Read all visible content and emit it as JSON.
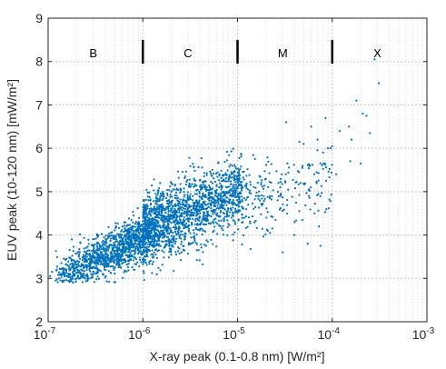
{
  "chart_data": {
    "type": "scatter",
    "title": "",
    "xlabel": "X-ray peak (0.1-0.8 nm) [W/m²]",
    "ylabel": "EUV peak (10-120 nm) [mW/m²]",
    "xscale": "log",
    "xlim": [
      1e-07,
      0.001
    ],
    "ylim": [
      2,
      9
    ],
    "grid": true,
    "grid_style": "dotted, x minor log grid",
    "point_color": "#0072bd",
    "x_ticks": [
      {
        "base": "10",
        "exp": "-7"
      },
      {
        "base": "10",
        "exp": "-6"
      },
      {
        "base": "10",
        "exp": "-5"
      },
      {
        "base": "10",
        "exp": "-4"
      },
      {
        "base": "10",
        "exp": "-3"
      }
    ],
    "y_ticks": [
      "2",
      "3",
      "4",
      "5",
      "6",
      "7",
      "8",
      "9"
    ],
    "flare_class_boundaries": [
      1e-06,
      1e-05,
      0.0001
    ],
    "flare_class_labels": [
      {
        "label": "B",
        "x": 3e-07
      },
      {
        "label": "C",
        "x": 3e-06
      },
      {
        "label": "M",
        "x": 3e-05
      },
      {
        "label": "X",
        "x": 0.0003
      }
    ],
    "clusters": [
      {
        "x_range": [
          1.2e-07,
          1e-06
        ],
        "y_mean": 3.45,
        "y_sd": 0.25,
        "slope": 1.1,
        "count": 1100
      },
      {
        "x_range": [
          1e-06,
          1.1e-05
        ],
        "y_mean": 4.55,
        "y_sd": 0.4,
        "slope": 0.9,
        "count": 1700
      },
      {
        "x_range": [
          1.1e-05,
          0.0001
        ],
        "y_mean": 5.0,
        "y_sd": 0.45,
        "slope": 0.5,
        "count": 220
      }
    ],
    "outliers": [
      {
        "x": 0.00028,
        "y": 8.05
      },
      {
        "x": 0.00031,
        "y": 7.5
      },
      {
        "x": 0.00018,
        "y": 7.1
      },
      {
        "x": 0.00021,
        "y": 6.8
      },
      {
        "x": 0.00023,
        "y": 6.75
      },
      {
        "x": 0.00025,
        "y": 6.35
      },
      {
        "x": 0.00015,
        "y": 6.5
      },
      {
        "x": 8.5e-05,
        "y": 6.7
      },
      {
        "x": 0.00012,
        "y": 6.4
      },
      {
        "x": 0.000155,
        "y": 5.7
      },
      {
        "x": 0.0002,
        "y": 5.65
      },
      {
        "x": 0.00011,
        "y": 5.4
      },
      {
        "x": 7e-05,
        "y": 6.2
      },
      {
        "x": 6e-05,
        "y": 6.5
      },
      {
        "x": 5e-05,
        "y": 6.1
      },
      {
        "x": 4.5e-05,
        "y": 6.15
      },
      {
        "x": 8e-05,
        "y": 5.9
      },
      {
        "x": 9e-05,
        "y": 6.0
      },
      {
        "x": 7.5e-05,
        "y": 3.75
      },
      {
        "x": 5.5e-05,
        "y": 3.8
      },
      {
        "x": 3e-05,
        "y": 3.6
      },
      {
        "x": 4e-05,
        "y": 4.3
      },
      {
        "x": 2.2e-05,
        "y": 4.05
      },
      {
        "x": 6.5e-05,
        "y": 4.5
      },
      {
        "x": 0.00016,
        "y": 6.2
      },
      {
        "x": 0.0001,
        "y": 6.05
      },
      {
        "x": 1.3e-07,
        "y": 3.0
      },
      {
        "x": 1.1e-07,
        "y": 3.15
      },
      {
        "x": 1.05e-07,
        "y": 3.05
      },
      {
        "x": 1.5e-07,
        "y": 3.1
      },
      {
        "x": 1.2e-07,
        "y": 2.95
      }
    ]
  }
}
